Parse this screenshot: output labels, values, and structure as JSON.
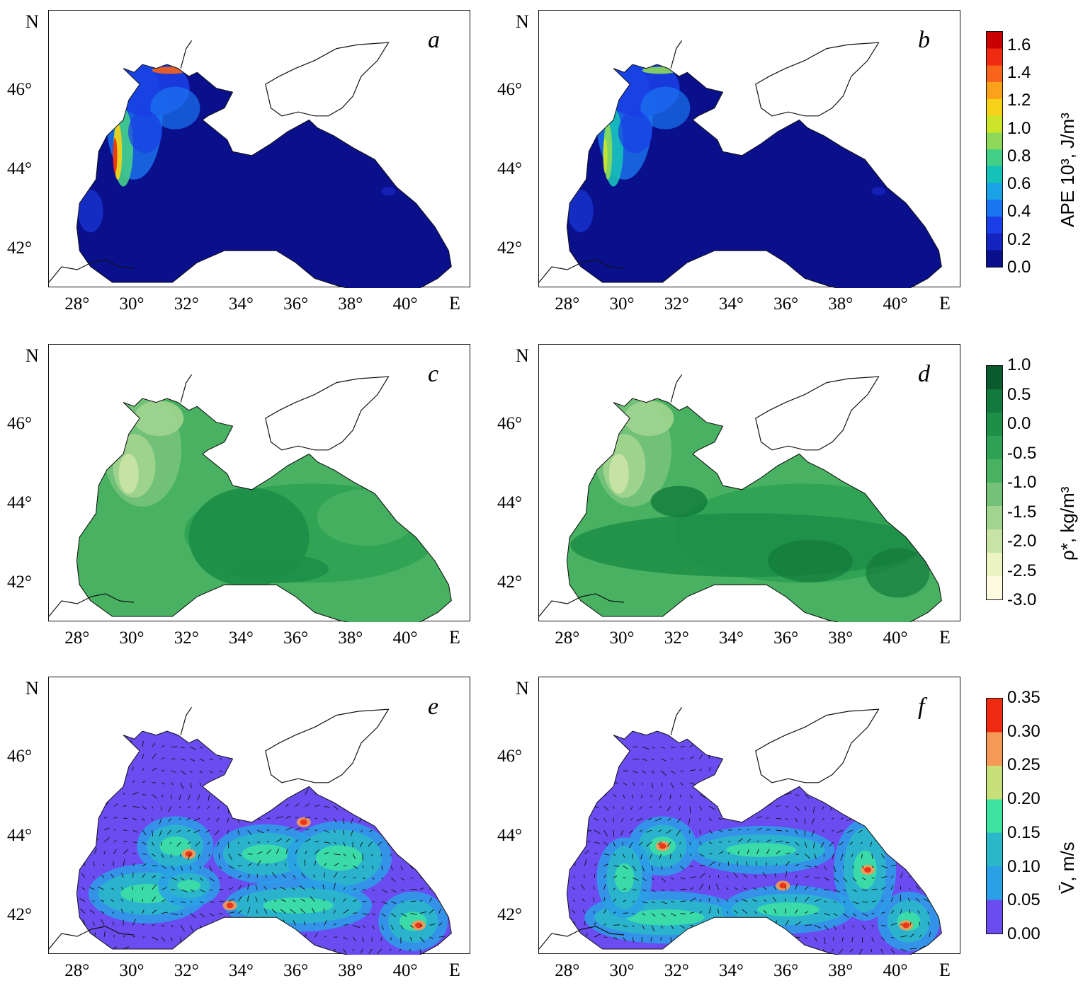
{
  "panels": [
    {
      "letter": "a",
      "var": "ape"
    },
    {
      "letter": "b",
      "var": "ape"
    },
    {
      "letter": "c",
      "var": "rho"
    },
    {
      "letter": "d",
      "var": "rho"
    },
    {
      "letter": "e",
      "var": "vel"
    },
    {
      "letter": "f",
      "var": "vel"
    }
  ],
  "axes": {
    "north_label": "N",
    "east_label": "E",
    "lat_ticks": [
      "46°",
      "44°",
      "42°"
    ],
    "lon_ticks": [
      "28°",
      "30°",
      "32°",
      "34°",
      "36°",
      "38°",
      "40°"
    ]
  },
  "colorbars": {
    "ape": {
      "title_html": "APE 10³, J/m³",
      "ticks": [
        "1.6",
        "1.4",
        "1.2",
        "1.0",
        "0.8",
        "0.6",
        "0.4",
        "0.2",
        "0.0"
      ],
      "colors": [
        "#c80000",
        "#ee2a10",
        "#f7641a",
        "#fba21a",
        "#f6d11a",
        "#cce52a",
        "#8ed95a",
        "#44cf88",
        "#16c1b8",
        "#1aa2e6",
        "#1a76f0",
        "#1a3fe6",
        "#1424c0",
        "#0a0f8c"
      ]
    },
    "rho": {
      "title_html": "ρ*, kg/m³",
      "ticks": [
        "1.0",
        "0.5",
        "0.0",
        "-0.5",
        "-1.0",
        "-1.5",
        "-2.0",
        "-2.5",
        "-3.0"
      ],
      "colors": [
        "#0b5a2e",
        "#127a3c",
        "#1e8f47",
        "#2ea154",
        "#48b262",
        "#74c27a",
        "#a0d48f",
        "#c8e4a5",
        "#ecf4c4",
        "#fffbe0"
      ]
    },
    "vel": {
      "title_html": "V̄, m/s",
      "ticks": [
        "0.35",
        "0.30",
        "0.25",
        "0.20",
        "0.15",
        "0.10",
        "0.05",
        "0.00"
      ],
      "colors": [
        "#ee2a10",
        "#f59a56",
        "#c8e07a",
        "#3fe3a0",
        "#2ab8c8",
        "#2aa0e6",
        "#6a4cf0"
      ]
    }
  }
}
